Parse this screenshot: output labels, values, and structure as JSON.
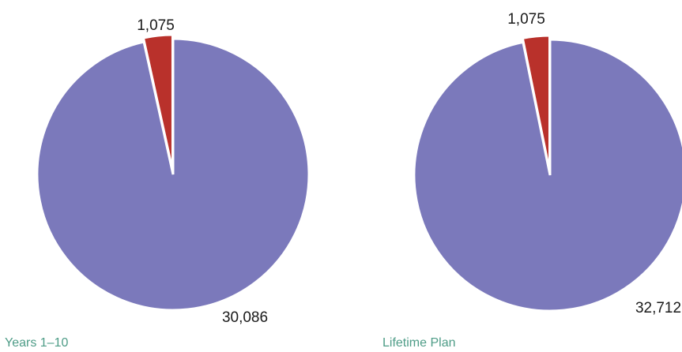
{
  "chart_data": [
    {
      "type": "pie",
      "caption": "Years 1–10",
      "slices": [
        {
          "label": "30,086",
          "value": 30086,
          "color": "#7b79bb"
        },
        {
          "label": "1,075",
          "value": 1075,
          "color": "#b9312b"
        }
      ]
    },
    {
      "type": "pie",
      "caption": "Lifetime Plan",
      "slices": [
        {
          "label": "32,712",
          "value": 32712,
          "color": "#7b79bb"
        },
        {
          "label": "1,075",
          "value": 1075,
          "color": "#b9312b"
        }
      ]
    }
  ]
}
